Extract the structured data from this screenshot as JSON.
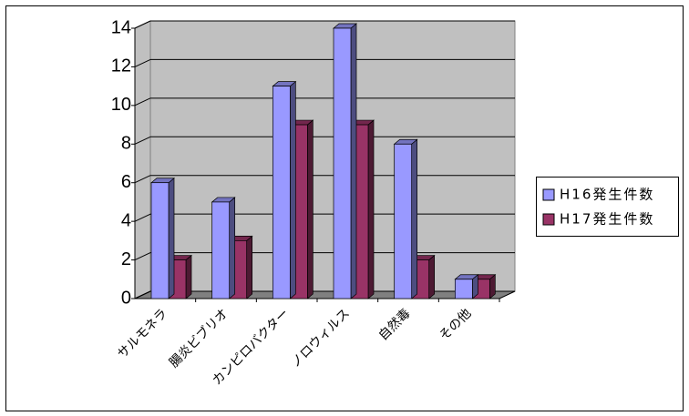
{
  "chart_data": {
    "type": "bar3d",
    "categories": [
      "サルモネラ",
      "腸炎ビブリオ",
      "カンピロバクター",
      "ノロウィルス",
      "自然毒",
      "その他"
    ],
    "series": [
      {
        "name": "H16発生件数",
        "color": "#9999ff",
        "values": [
          6,
          5,
          11,
          14,
          8,
          1
        ]
      },
      {
        "name": "H17発生件数",
        "color": "#993366",
        "values": [
          2,
          3,
          9,
          9,
          2,
          1
        ]
      }
    ],
    "ylim": [
      0,
      14
    ],
    "yticks": [
      0,
      2,
      4,
      6,
      8,
      10,
      12,
      14
    ],
    "grid": true
  }
}
